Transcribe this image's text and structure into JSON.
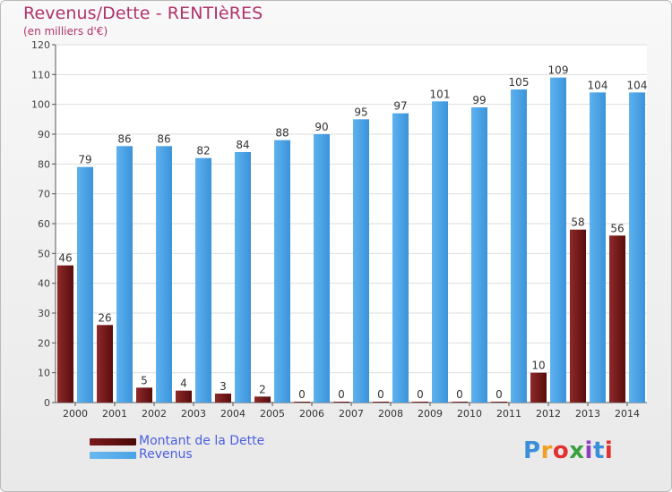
{
  "header": {
    "title": "Revenus/Dette - RENTIèRES",
    "subtitle": "(en milliers d'€)"
  },
  "legend": {
    "items": [
      {
        "label": "Montant de la Dette",
        "color": "#7a1a1a"
      },
      {
        "label": "Revenus",
        "color": "#4aa3e6"
      }
    ]
  },
  "logo": {
    "text": "Proxiti",
    "letter_colors": [
      "#3a8fd8",
      "#f0a020",
      "#e03030",
      "#3aa040",
      "#8a40c0",
      "#3a8fd8",
      "#e03030"
    ]
  },
  "chart_data": {
    "type": "bar",
    "categories": [
      "2000",
      "2001",
      "2002",
      "2003",
      "2004",
      "2005",
      "2006",
      "2007",
      "2008",
      "2009",
      "2010",
      "2011",
      "2012",
      "2013",
      "2014"
    ],
    "series": [
      {
        "name": "Montant de la Dette",
        "color": "#7a1a1a",
        "values": [
          46,
          26,
          5,
          4,
          3,
          2,
          0,
          0,
          0,
          0,
          0,
          0,
          10,
          58,
          56
        ]
      },
      {
        "name": "Revenus",
        "color": "#4aa3e6",
        "values": [
          79,
          86,
          86,
          82,
          84,
          88,
          90,
          95,
          97,
          101,
          99,
          105,
          109,
          104,
          104
        ]
      }
    ],
    "yticks": [
      "0",
      "10",
      "20",
      "30",
      "40",
      "50",
      "60",
      "70",
      "80",
      "90",
      "100",
      "110",
      "120"
    ],
    "ylim": [
      0,
      120
    ],
    "grid": true
  }
}
